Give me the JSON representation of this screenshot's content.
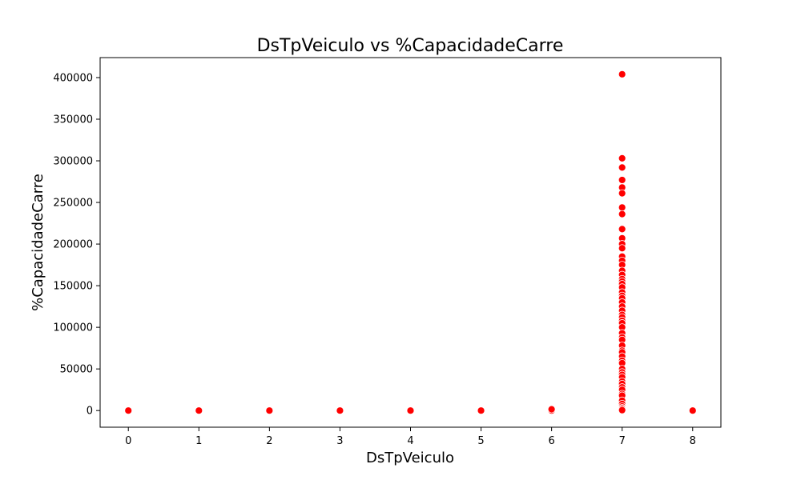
{
  "chart_data": {
    "type": "scatter",
    "title": "DsTpVeiculo vs %CapacidadeCarre",
    "xlabel": "DsTpVeiculo",
    "ylabel": "%CapacidadeCarre",
    "xlim": [
      -0.4,
      8.4
    ],
    "ylim": [
      -20000,
      424000
    ],
    "x_ticks": [
      0,
      1,
      2,
      3,
      4,
      5,
      6,
      7,
      8
    ],
    "y_ticks": [
      0,
      50000,
      100000,
      150000,
      200000,
      250000,
      300000,
      350000,
      400000
    ],
    "x_tick_labels": [
      "0",
      "1",
      "2",
      "3",
      "4",
      "5",
      "6",
      "7",
      "8"
    ],
    "y_tick_labels": [
      "0",
      "50000",
      "100000",
      "150000",
      "200000",
      "250000",
      "300000",
      "350000",
      "400000"
    ],
    "grid": false,
    "marker_color": "#ff0000",
    "marker_edge_color": "#ffffff",
    "series": [
      {
        "x": [
          0,
          1,
          2,
          3,
          4,
          5,
          6,
          6,
          8,
          7,
          7,
          7,
          7,
          7,
          7,
          7,
          7,
          7,
          7,
          7,
          7,
          7,
          7,
          7,
          7,
          7,
          7,
          7,
          7,
          7,
          7,
          7,
          7,
          7,
          7,
          7,
          7,
          7,
          7,
          7,
          7,
          7,
          7,
          7,
          7,
          7,
          7,
          7,
          7,
          7,
          7,
          7,
          7,
          7,
          7,
          7,
          7,
          7,
          7,
          7,
          7,
          7,
          7,
          7,
          7,
          7,
          7,
          7
        ],
        "y": [
          0,
          0,
          0,
          0,
          0,
          0,
          0,
          1500,
          0,
          404000,
          303000,
          292000,
          277000,
          268000,
          261000,
          244000,
          236000,
          218000,
          207000,
          200000,
          195000,
          185000,
          180000,
          175000,
          168000,
          163000,
          158000,
          155000,
          152000,
          148000,
          142000,
          138000,
          135000,
          130000,
          125000,
          120000,
          115000,
          112000,
          108000,
          105000,
          100000,
          93000,
          88000,
          85000,
          78000,
          72000,
          70000,
          65000,
          60000,
          57000,
          50000,
          46000,
          43000,
          40000,
          35000,
          32000,
          28000,
          25000,
          20000,
          18000,
          12000,
          8000,
          5000,
          3000,
          1000,
          0,
          2000,
          500
        ]
      }
    ]
  }
}
